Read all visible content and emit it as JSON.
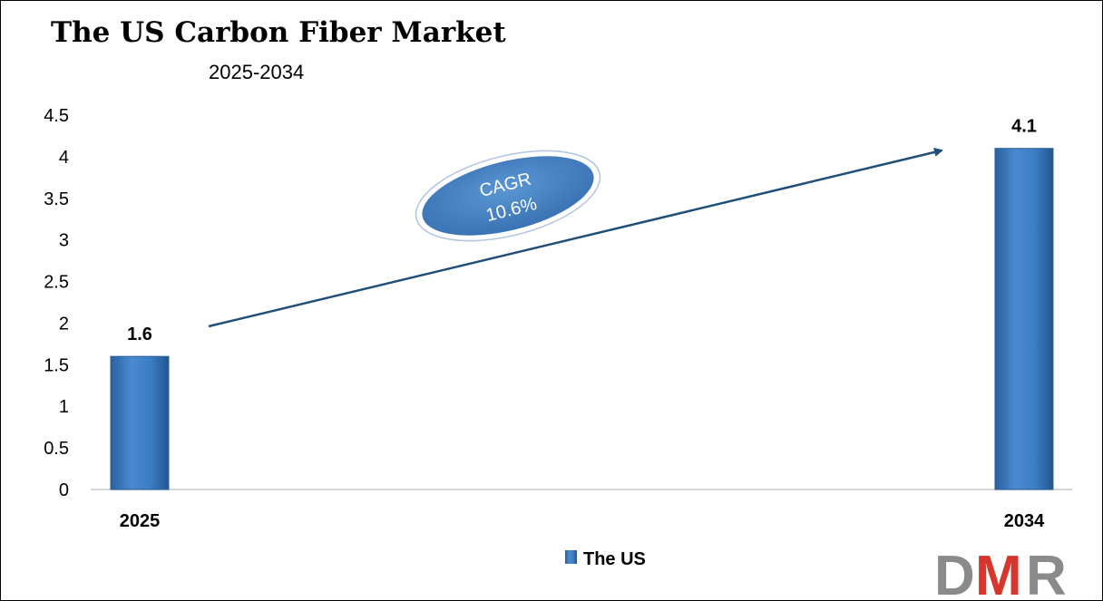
{
  "chart_data": {
    "type": "bar",
    "title": "The US Carbon Fiber Market",
    "subtitle": "2025-2034",
    "categories": [
      "2025",
      "2034"
    ],
    "series": [
      {
        "name": "The US",
        "values": [
          1.6,
          4.1
        ],
        "color": "#3b7cc4"
      }
    ],
    "data_labels": [
      "1.6",
      "4.1"
    ],
    "ylim": [
      0,
      4.5
    ],
    "yticks": [
      "0",
      "0.5",
      "1",
      "1.5",
      "2",
      "2.5",
      "3",
      "3.5",
      "4",
      "4.5"
    ],
    "grid": false,
    "legend_position": "bottom-center",
    "annotation": {
      "line1": "CAGR",
      "line2": "10.6%",
      "color": "#4a86c8"
    }
  },
  "logo": {
    "d": "D",
    "m": "M",
    "r": "R",
    "colors": {
      "d": "#8a8a8a",
      "m": "#d6362b",
      "r": "#8a8a8a"
    }
  }
}
